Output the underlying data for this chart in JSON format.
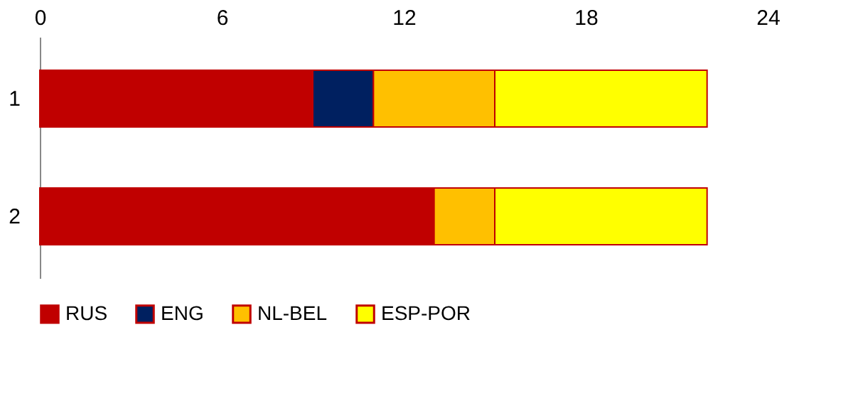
{
  "chart_data": {
    "type": "bar",
    "orientation": "horizontal",
    "stacked": true,
    "categories": [
      "1",
      "2"
    ],
    "series": [
      {
        "name": "RUS",
        "color": "#c00000",
        "values": [
          9,
          13
        ]
      },
      {
        "name": "ENG",
        "color": "#002060",
        "values": [
          2,
          0
        ]
      },
      {
        "name": "NL-BEL",
        "color": "#ffc000",
        "values": [
          4,
          2
        ]
      },
      {
        "name": "ESP-POR",
        "color": "#ffff00",
        "values": [
          7,
          7
        ]
      }
    ],
    "xlim": [
      0,
      24
    ],
    "xticks": [
      0,
      6,
      12,
      18,
      24
    ],
    "grid": false,
    "legend": "bottom"
  }
}
